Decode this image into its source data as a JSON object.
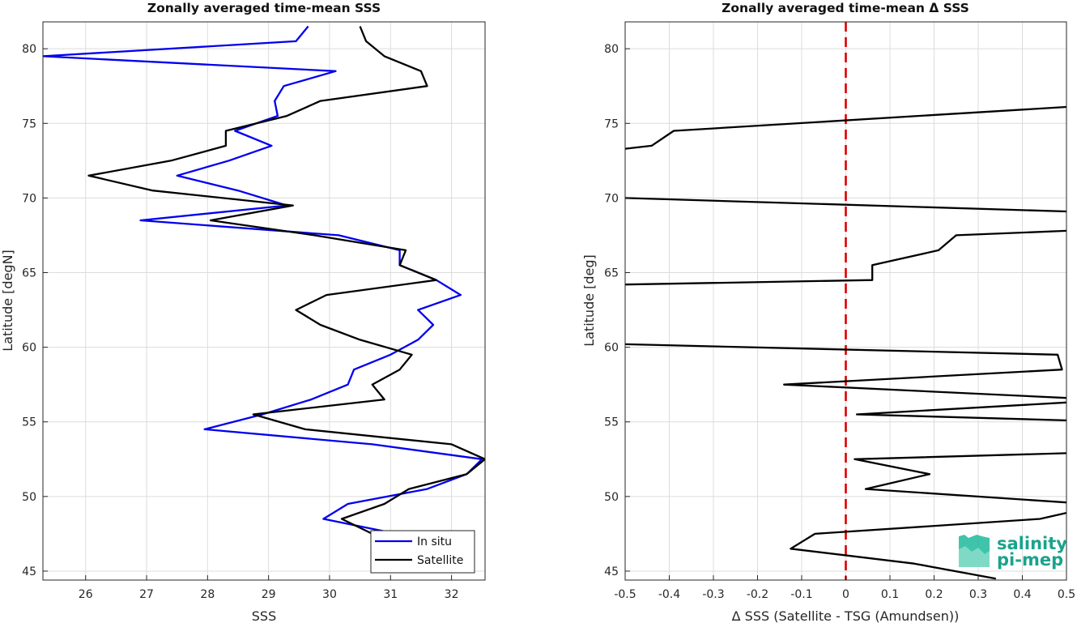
{
  "chart_data": [
    {
      "type": "line",
      "title": "Zonally averaged time-mean SSS",
      "xlabel": "SSS",
      "ylabel": "Latitude [degN]",
      "xlim": [
        25.3,
        32.55
      ],
      "ylim": [
        44.4,
        81.8
      ],
      "xticks": [
        26,
        27,
        28,
        29,
        30,
        31,
        32
      ],
      "yticks": [
        45,
        50,
        55,
        60,
        65,
        70,
        75,
        80
      ],
      "grid": true,
      "legend": "bottom-right",
      "series": [
        {
          "name": "In situ",
          "color": "#0000ee",
          "lat": [
            81.5,
            80.5,
            79.5,
            78.5,
            77.5,
            76.5,
            75.5,
            74.5,
            73.5,
            72.5,
            71.5,
            70.5,
            69.5,
            68.5,
            67.5,
            66.5,
            65.5,
            64.5,
            63.5,
            62.5,
            61.5,
            60.5,
            59.5,
            58.5,
            57.5,
            56.5,
            55.5,
            54.5,
            53.5,
            52.5,
            51.5,
            50.5,
            49.5,
            48.5,
            47.5
          ],
          "sss": [
            29.65,
            29.45,
            25.3,
            30.1,
            29.25,
            29.1,
            29.15,
            28.45,
            29.05,
            28.35,
            27.5,
            28.5,
            29.3,
            26.9,
            30.15,
            31.15,
            31.15,
            31.75,
            32.15,
            31.45,
            31.7,
            31.45,
            31.0,
            30.4,
            30.3,
            29.7,
            28.9,
            27.95,
            30.7,
            32.5,
            32.25,
            31.6,
            30.3,
            29.9,
            31.1
          ]
        },
        {
          "name": "Satellite",
          "color": "#000000",
          "lat": [
            81.5,
            80.5,
            79.5,
            78.5,
            77.5,
            76.5,
            75.5,
            74.5,
            73.5,
            72.5,
            71.5,
            70.5,
            69.5,
            68.5,
            67.5,
            66.5,
            65.5,
            64.5,
            63.5,
            62.5,
            61.5,
            60.5,
            59.5,
            58.5,
            57.5,
            56.5,
            55.5,
            54.5,
            53.5,
            52.5,
            51.5,
            50.5,
            49.5,
            48.5,
            47.5
          ],
          "sss": [
            30.5,
            30.6,
            30.9,
            31.5,
            31.6,
            29.85,
            29.3,
            28.3,
            28.3,
            27.4,
            26.05,
            27.1,
            29.4,
            28.05,
            29.75,
            31.25,
            31.15,
            31.75,
            29.95,
            29.45,
            29.85,
            30.5,
            31.35,
            31.15,
            30.7,
            30.9,
            28.75,
            29.6,
            32.0,
            32.55,
            32.25,
            31.3,
            30.9,
            30.2,
            30.7
          ]
        }
      ]
    },
    {
      "type": "line",
      "title": "Zonally averaged time-mean Δ SSS",
      "xlabel": "Δ SSS (Satellite - TSG (Amundsen))",
      "ylabel": "Latitude [deg]",
      "xlim": [
        -0.5,
        0.5
      ],
      "ylim": [
        44.4,
        81.8
      ],
      "xticks": [
        -0.5,
        -0.4,
        -0.3,
        -0.2,
        -0.1,
        0,
        0.1,
        0.2,
        0.3,
        0.4,
        0.5
      ],
      "yticks": [
        45,
        50,
        55,
        60,
        65,
        70,
        75,
        80
      ],
      "grid": true,
      "reference_line": {
        "x": 0,
        "color": "#dd0000",
        "style": "dashed"
      },
      "series": [
        {
          "name": "",
          "color": "#000000",
          "segments": [
            {
              "x": [
                0.5,
                -0.39,
                -0.44,
                -0.5
              ],
              "lat": [
                76.1,
                74.5,
                73.5,
                73.3
              ]
            },
            {
              "x": [
                -0.5,
                0.5
              ],
              "lat": [
                70.0,
                69.1
              ]
            },
            {
              "x": [
                0.5,
                0.25,
                0.21,
                0.06,
                0.06,
                -0.5
              ],
              "lat": [
                67.8,
                67.5,
                66.5,
                65.5,
                64.5,
                64.2
              ]
            },
            {
              "x": [
                -0.5,
                0.48,
                0.49,
                -0.14,
                0.5
              ],
              "lat": [
                60.2,
                59.5,
                58.5,
                57.5,
                56.6
              ]
            },
            {
              "x": [
                0.5,
                0.025,
                0.5
              ],
              "lat": [
                56.3,
                55.5,
                55.1
              ]
            },
            {
              "x": [
                0.5,
                0.02,
                0.19,
                0.045,
                0.5
              ],
              "lat": [
                52.9,
                52.5,
                51.5,
                50.5,
                49.6
              ]
            },
            {
              "x": [
                0.5,
                0.44,
                -0.07,
                -0.125,
                0.155,
                0.34
              ],
              "lat": [
                48.9,
                48.5,
                47.5,
                46.5,
                45.5,
                44.5
              ]
            }
          ]
        }
      ]
    }
  ],
  "legend": {
    "items": [
      {
        "label": "In situ",
        "color": "#0000ee"
      },
      {
        "label": "Satellite",
        "color": "#000000"
      }
    ]
  },
  "logo": {
    "line1": "salinity",
    "line2": "pi-mep",
    "color": "#19a38c"
  }
}
